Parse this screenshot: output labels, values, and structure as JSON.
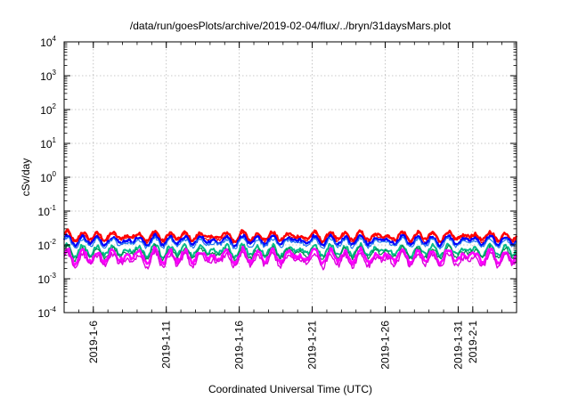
{
  "chart_data": {
    "type": "line",
    "title": "/data/run/goesPlots/archive/2019-02-04/flux/../bryn/31daysMars.plot",
    "xlabel": "Coordinated Universal Time (UTC)",
    "ylabel": "cSv/day",
    "x_range": [
      "2019-01-04",
      "2019-02-04"
    ],
    "x_tick_labels": [
      "2019-1-6",
      "2019-1-11",
      "2019-1-16",
      "2019-1-21",
      "2019-1-26",
      "2019-1-31",
      "2019-2-1"
    ],
    "x_tick_dates": [
      "2019-01-06",
      "2019-01-11",
      "2019-01-16",
      "2019-01-21",
      "2019-01-26",
      "2019-01-31",
      "2019-02-01"
    ],
    "y_scale": "log",
    "y_range": [
      0.0001,
      10000
    ],
    "y_tick_labels": [
      "10-4",
      "10-3",
      "10-2",
      "10-1",
      "100",
      "101",
      "102",
      "103",
      "104"
    ],
    "y_tick_mantissa": "10",
    "y_tick_exponents": [
      "-4",
      "-3",
      "-2",
      "-1",
      "0",
      "1",
      "2",
      "3",
      "4"
    ],
    "grid": true,
    "series_colors": [
      "#ff0000",
      "#ff0000",
      "#0000ff",
      "#2277ee",
      "#00bb88",
      "#008a4c",
      "#ff00ff",
      "#dd00dd"
    ],
    "series_base_levels": [
      0.018,
      0.0165,
      0.0135,
      0.0115,
      0.0068,
      0.0058,
      0.0045,
      0.0036
    ]
  }
}
